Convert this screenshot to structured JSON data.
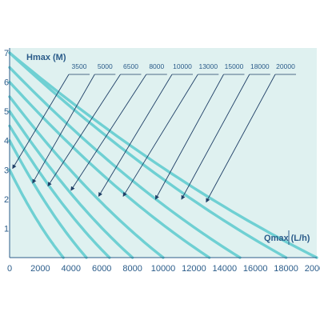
{
  "chart_data": {
    "type": "line",
    "ylabel": "Hmax (M)",
    "xlabel": "Qmax (L/h)",
    "xlim": [
      0,
      20000
    ],
    "ylim": [
      0,
      7
    ],
    "xticks": [
      "0",
      "2000",
      "4000",
      "6000",
      "8000",
      "10000",
      "12000",
      "14000",
      "16000",
      "18000",
      "20000"
    ],
    "yticks": [
      "1",
      "2",
      "3",
      "4",
      "5",
      "6",
      "7"
    ],
    "grid": false,
    "colors": {
      "background": "#dff1f0",
      "curve": "#6fd0d3",
      "text": "#2b5c8a",
      "annotation": "#1f3f66",
      "axis": "#2b5c8a"
    },
    "series": [
      {
        "name": "3500",
        "hmax": 3.0,
        "qmax": 3500,
        "pointer": [
          200,
          3.05
        ]
      },
      {
        "name": "5000",
        "hmax": 4.0,
        "qmax": 5000,
        "pointer": [
          1500,
          2.55
        ]
      },
      {
        "name": "6500",
        "hmax": 4.5,
        "qmax": 6500,
        "pointer": [
          2500,
          2.45
        ]
      },
      {
        "name": "8000",
        "hmax": 5.0,
        "qmax": 8000,
        "pointer": [
          4000,
          2.3
        ]
      },
      {
        "name": "10000",
        "hmax": 5.5,
        "qmax": 10000,
        "pointer": [
          5800,
          2.1
        ]
      },
      {
        "name": "13000",
        "hmax": 6.0,
        "qmax": 13000,
        "pointer": [
          7400,
          2.1
        ]
      },
      {
        "name": "15000",
        "hmax": 6.5,
        "qmax": 15000,
        "pointer": [
          9500,
          2.0
        ]
      },
      {
        "name": "18000",
        "hmax": 7.0,
        "qmax": 18000,
        "pointer": [
          11200,
          2.0
        ]
      },
      {
        "name": "20000",
        "hmax": 7.0,
        "qmax": 20000,
        "pointer": [
          12800,
          1.9
        ]
      }
    ]
  }
}
